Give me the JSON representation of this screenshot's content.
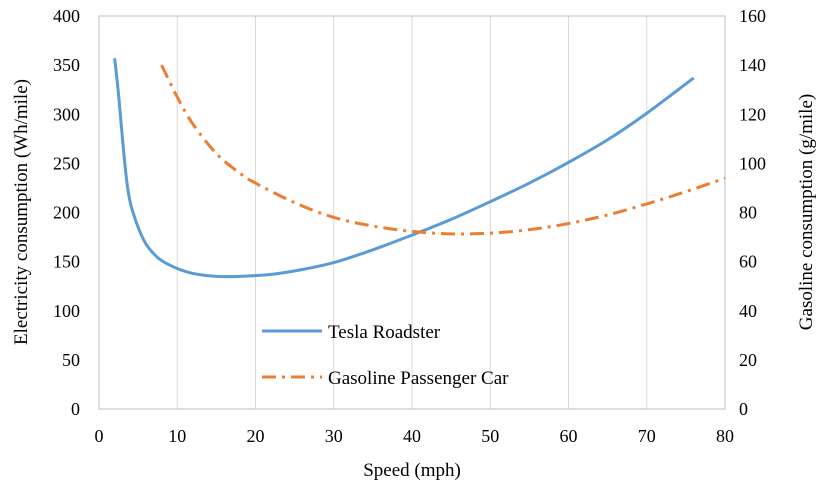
{
  "chart_data": {
    "type": "line",
    "title": "",
    "xlabel": "Speed (mph)",
    "ylabel_left": "Electricity consumption (Wh/mile)",
    "ylabel_right": "Gasoline consumption (g/mile)",
    "xlim": [
      0,
      80
    ],
    "ylim_left": [
      0,
      400
    ],
    "ylim_right": [
      0,
      160
    ],
    "x_ticks": [
      "0",
      "10",
      "20",
      "30",
      "40",
      "50",
      "60",
      "70",
      "80"
    ],
    "y_left_ticks": [
      "0",
      "50",
      "100",
      "150",
      "200",
      "250",
      "300",
      "350",
      "400"
    ],
    "y_right_ticks": [
      "0",
      "20",
      "40",
      "60",
      "80",
      "100",
      "120",
      "140",
      "160"
    ],
    "grid": "vertical",
    "legend_position": "bottom-left-inside",
    "colors": {
      "tesla": "#5b9bd5",
      "gasoline": "#ed7d31"
    },
    "series": [
      {
        "name": "Tesla Roadster",
        "axis": "left",
        "style": "solid",
        "x": [
          2,
          2.5,
          3,
          3.5,
          4,
          5,
          6,
          7,
          8,
          10,
          12,
          15,
          18,
          22,
          26,
          30,
          35,
          40,
          45,
          50,
          55,
          60,
          65,
          70,
          76
        ],
        "y": [
          357,
          320,
          275,
          235,
          210,
          185,
          168,
          158,
          151,
          143,
          138,
          135,
          135,
          137,
          142,
          149,
          162,
          177,
          193,
          211,
          230,
          251,
          274,
          301,
          337
        ]
      },
      {
        "name": "Gasoline Passenger Car",
        "axis": "right",
        "style": "dash-dot",
        "x": [
          8,
          10,
          12,
          15,
          18,
          20,
          25,
          30,
          35,
          40,
          45,
          50,
          55,
          60,
          65,
          70,
          75,
          80
        ],
        "y": [
          140,
          127,
          116,
          104,
          96,
          92,
          84,
          78,
          74.5,
          72.3,
          71.3,
          71.6,
          73,
          75.5,
          79,
          83.5,
          88.5,
          94
        ]
      }
    ]
  }
}
